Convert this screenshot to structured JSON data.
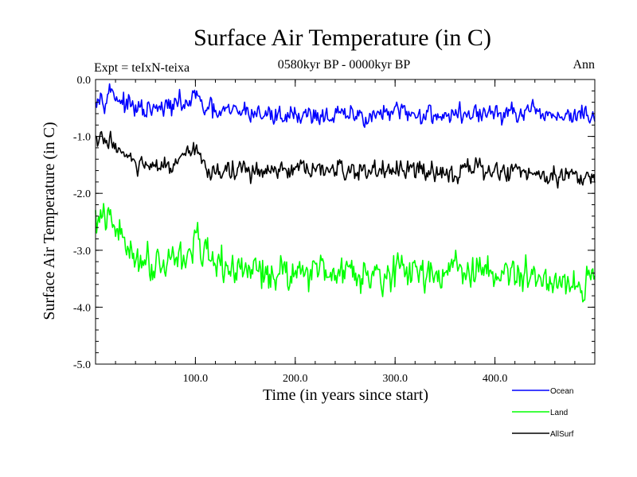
{
  "chart_data": {
    "type": "line",
    "title": "Surface Air Temperature (in C)",
    "subtitle": "0580kyr BP - 0000kyr BP",
    "left_label": "Expt = teIxN-teixa",
    "right_label": "Ann",
    "xlabel": "Time (in years since start)",
    "ylabel": "Surface Air Temperature (in C)",
    "xlim": [
      0,
      500
    ],
    "ylim": [
      -5.0,
      0.0
    ],
    "x_ticks": [
      100,
      200,
      300,
      400
    ],
    "x_tick_labels": [
      "100.0",
      "200.0",
      "300.0",
      "400.0"
    ],
    "y_ticks": [
      0.0,
      -1.0,
      -2.0,
      -3.0,
      -4.0,
      -5.0
    ],
    "y_tick_labels": [
      "0.0",
      "-1.0",
      "-2.0",
      "-3.0",
      "-4.0",
      "-5.0"
    ],
    "x_minor_step": 20,
    "y_minor_step": 0.2,
    "series": [
      {
        "name": "Ocean",
        "color": "#0000ff",
        "keypoints": [
          [
            0,
            -0.25
          ],
          [
            8,
            -0.3
          ],
          [
            15,
            -0.2
          ],
          [
            22,
            -0.3
          ],
          [
            30,
            -0.45
          ],
          [
            45,
            -0.55
          ],
          [
            60,
            -0.55
          ],
          [
            80,
            -0.45
          ],
          [
            95,
            -0.4
          ],
          [
            100,
            -0.25
          ],
          [
            105,
            -0.45
          ],
          [
            120,
            -0.6
          ],
          [
            150,
            -0.55
          ],
          [
            180,
            -0.65
          ],
          [
            200,
            -0.6
          ],
          [
            250,
            -0.65
          ],
          [
            300,
            -0.6
          ],
          [
            350,
            -0.62
          ],
          [
            400,
            -0.6
          ],
          [
            450,
            -0.62
          ],
          [
            500,
            -0.65
          ]
        ],
        "noise": 0.13
      },
      {
        "name": "Land",
        "color": "#00ff00",
        "keypoints": [
          [
            0,
            -2.5
          ],
          [
            10,
            -2.45
          ],
          [
            20,
            -2.6
          ],
          [
            30,
            -2.9
          ],
          [
            45,
            -3.15
          ],
          [
            60,
            -3.2
          ],
          [
            80,
            -3.1
          ],
          [
            95,
            -3.1
          ],
          [
            100,
            -2.6
          ],
          [
            106,
            -3.1
          ],
          [
            120,
            -3.3
          ],
          [
            150,
            -3.35
          ],
          [
            180,
            -3.4
          ],
          [
            200,
            -3.35
          ],
          [
            250,
            -3.35
          ],
          [
            300,
            -3.4
          ],
          [
            350,
            -3.35
          ],
          [
            400,
            -3.4
          ],
          [
            450,
            -3.5
          ],
          [
            500,
            -3.6
          ]
        ],
        "noise": 0.22
      },
      {
        "name": "AllSurf",
        "color": "#000000",
        "keypoints": [
          [
            0,
            -1.05
          ],
          [
            8,
            -1.1
          ],
          [
            15,
            -1.05
          ],
          [
            25,
            -1.25
          ],
          [
            35,
            -1.45
          ],
          [
            50,
            -1.55
          ],
          [
            70,
            -1.55
          ],
          [
            90,
            -1.45
          ],
          [
            100,
            -1.15
          ],
          [
            106,
            -1.5
          ],
          [
            120,
            -1.6
          ],
          [
            150,
            -1.6
          ],
          [
            180,
            -1.65
          ],
          [
            200,
            -1.6
          ],
          [
            250,
            -1.6
          ],
          [
            300,
            -1.62
          ],
          [
            350,
            -1.6
          ],
          [
            400,
            -1.6
          ],
          [
            450,
            -1.65
          ],
          [
            500,
            -1.7
          ]
        ],
        "noise": 0.13
      }
    ],
    "n_points": 500
  }
}
